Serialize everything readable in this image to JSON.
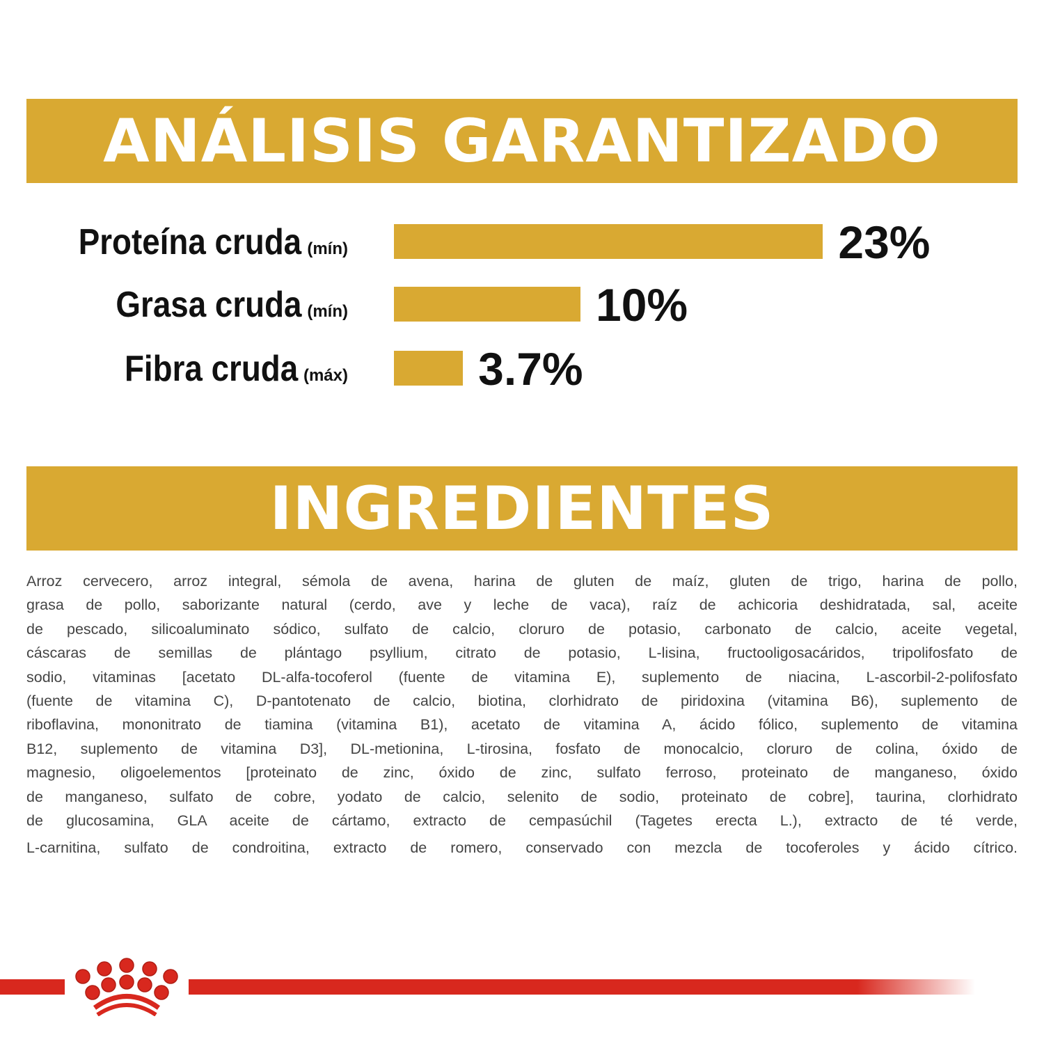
{
  "colors": {
    "gold": "#d9a932",
    "red": "#d8281e"
  },
  "headers": {
    "analysis": "ANÁLISIS GARANTIZADO",
    "ingredients": "INGREDIENTES"
  },
  "chart_data": {
    "type": "bar",
    "orientation": "horizontal",
    "title": "ANÁLISIS GARANTIZADO",
    "categories": [
      "Proteína cruda",
      "Grasa cruda",
      "Fibra cruda"
    ],
    "qualifiers": [
      "(mín)",
      "(mín)",
      "(máx)"
    ],
    "values": [
      23,
      10,
      3.7
    ],
    "value_labels": [
      "23%",
      "10%",
      "3.7%"
    ],
    "unit": "%"
  },
  "ingredients_lines": [
    "Arroz cervecero, arroz integral, sémola de avena, harina de gluten de maíz, gluten de trigo, harina de pollo,",
    "grasa de pollo, saborizante natural (cerdo, ave y leche de vaca), raíz de achicoria deshidratada, sal, aceite",
    "de pescado, silicoaluminato sódico, sulfato de calcio, cloruro de potasio, carbonato de calcio, aceite vegetal,",
    "cáscaras de semillas de plántago psyllium, citrato de potasio, L-lisina, fructooligosacáridos, tripolifosfato de",
    "sodio, vitaminas [acetato DL-alfa-tocoferol (fuente de vitamina E), suplemento de niacina, L-ascorbil-2-polifosfato",
    "(fuente de vitamina C), D-pantotenato de calcio, biotina, clorhidrato de piridoxina (vitamina B6), suplemento de",
    "riboflavina, mononitrato de tiamina (vitamina B1), acetato de vitamina A, ácido fólico, suplemento de vitamina",
    "B12, suplemento de vitamina D3], DL-metionina, L-tirosina, fosfato de monocalcio, cloruro de colina, óxido de",
    "magnesio, oligoelementos [proteinato de zinc, óxido de zinc, sulfato ferroso, proteinato de manganeso, óxido",
    "de manganeso, sulfato de cobre, yodato de calcio, selenito de sodio, proteinato de cobre], taurina, clorhidrato",
    "de glucosamina, GLA aceite de cártamo, extracto de cempasúchil (Tagetes erecta L.), extracto de té verde,",
    "L-carnitina, sulfato de condroitina, extracto de romero, conservado con mezcla de tocoferoles y ácido cítrico."
  ],
  "logo": {
    "icon": "royal-canin-crown-icon"
  }
}
